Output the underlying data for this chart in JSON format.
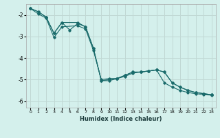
{
  "xlabel": "Humidex (Indice chaleur)",
  "bg_color": "#d4f0ec",
  "grid_color": "#c0d8d4",
  "line_color": "#1a6b6b",
  "xlim": [
    -0.5,
    23.5
  ],
  "ylim": [
    -6.3,
    -1.5
  ],
  "xticks": [
    0,
    1,
    2,
    3,
    4,
    5,
    6,
    7,
    8,
    9,
    10,
    11,
    12,
    13,
    14,
    15,
    16,
    17,
    18,
    19,
    20,
    21,
    22,
    23
  ],
  "yticks": [
    -6,
    -5,
    -4,
    -3,
    -2
  ],
  "series1_x": [
    0,
    1,
    2,
    3,
    4,
    6,
    7,
    8,
    9,
    10,
    11,
    12,
    13,
    14,
    15,
    16,
    17,
    18,
    19,
    20,
    21,
    22,
    23
  ],
  "series1_y": [
    -1.7,
    -1.85,
    -2.1,
    -2.85,
    -2.35,
    -2.35,
    -2.55,
    -3.55,
    -5.05,
    -5.05,
    -4.95,
    -4.8,
    -4.65,
    -4.65,
    -4.6,
    -4.55,
    -4.65,
    -5.15,
    -5.35,
    -5.5,
    -5.6,
    -5.65,
    -5.7
  ],
  "series2_x": [
    0,
    1,
    2,
    3,
    4,
    5,
    6,
    7,
    8,
    9,
    10,
    11,
    12,
    13,
    14,
    15,
    16,
    17,
    18,
    19,
    20,
    21,
    22,
    23
  ],
  "series2_y": [
    -1.7,
    -1.85,
    -2.1,
    -2.85,
    -2.35,
    -2.7,
    -2.4,
    -2.55,
    -3.55,
    -5.05,
    -5.0,
    -4.95,
    -4.8,
    -4.65,
    -4.65,
    -4.6,
    -4.55,
    -5.15,
    -5.35,
    -5.5,
    -5.6,
    -5.65,
    -5.7,
    -5.72
  ],
  "series3_x": [
    0,
    1,
    2,
    3,
    4,
    6,
    7,
    8,
    9,
    10,
    11,
    12,
    13,
    14,
    15,
    16,
    17,
    18,
    19,
    20,
    21,
    22,
    23
  ],
  "series3_y": [
    -1.7,
    -1.95,
    -2.15,
    -3.05,
    -2.55,
    -2.5,
    -2.65,
    -3.65,
    -5.0,
    -4.95,
    -4.95,
    -4.85,
    -4.7,
    -4.65,
    -4.6,
    -4.55,
    -4.65,
    -5.15,
    -5.35,
    -5.5,
    -5.6,
    -5.65,
    -5.7
  ]
}
